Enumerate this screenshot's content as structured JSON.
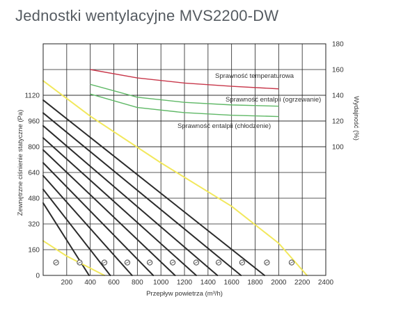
{
  "title": "Jednostki wentylacyjne MVS2200-DW",
  "chart_data": {
    "type": "line",
    "title": "Jednostki wentylacyjne MVS2200-DW",
    "xlabel": "Przepływ powietrza (m³/h)",
    "ylabel_left": "Zewnętrzne ciśnienie statyczne (Pa)",
    "ylabel_right": "Wydajność (%)",
    "xlim": [
      0,
      2400
    ],
    "xticks": [
      200,
      400,
      600,
      800,
      1000,
      1200,
      1400,
      1600,
      1800,
      2000,
      2200,
      2400
    ],
    "xtick_labels": [
      "200",
      "400",
      "600",
      "800",
      "1000",
      "1200",
      "1400",
      "1600",
      "1800",
      "2000",
      "2200",
      "2400"
    ],
    "ylim_left": [
      0,
      1440
    ],
    "yticks_left": [
      0,
      160,
      320,
      480,
      640,
      800,
      960,
      1120
    ],
    "ytick_labels_left": [
      "0",
      "160",
      "320",
      "480",
      "640",
      "800",
      "960",
      "1120"
    ],
    "ylim_right": [
      0,
      180
    ],
    "yticks_right": [
      100,
      120,
      140,
      160,
      180
    ],
    "ytick_labels_right": [
      "100",
      "120",
      "140",
      "160",
      "180"
    ],
    "grid": true,
    "curve_series": [
      {
        "color": "#f2e85c",
        "points": [
          [
            0,
            1210
          ],
          [
            400,
            990
          ],
          [
            1000,
            700
          ],
          [
            1600,
            430
          ],
          [
            2000,
            200
          ],
          [
            2240,
            0
          ]
        ]
      },
      {
        "color": "#2b2b2b",
        "points": [
          [
            0,
            1090
          ],
          [
            1880,
            0
          ]
        ]
      },
      {
        "color": "#2b2b2b",
        "points": [
          [
            0,
            1010
          ],
          [
            1680,
            0
          ]
        ]
      },
      {
        "color": "#2b2b2b",
        "points": [
          [
            0,
            930
          ],
          [
            1480,
            0
          ]
        ]
      },
      {
        "color": "#2b2b2b",
        "points": [
          [
            0,
            855
          ],
          [
            1300,
            0
          ]
        ]
      },
      {
        "color": "#2b2b2b",
        "points": [
          [
            0,
            780
          ],
          [
            1120,
            0
          ]
        ]
      },
      {
        "color": "#2b2b2b",
        "points": [
          [
            0,
            700
          ],
          [
            935,
            0
          ]
        ]
      },
      {
        "color": "#2b2b2b",
        "points": [
          [
            0,
            620
          ],
          [
            755,
            0
          ]
        ]
      },
      {
        "color": "#2b2b2b",
        "points": [
          [
            0,
            535
          ],
          [
            570,
            0
          ]
        ]
      },
      {
        "color": "#2b2b2b",
        "points": [
          [
            0,
            450
          ],
          [
            390,
            0
          ]
        ]
      },
      {
        "color": "#f2e85c",
        "points": [
          [
            0,
            215
          ],
          [
            200,
            120
          ],
          [
            520,
            0
          ]
        ]
      }
    ],
    "efficiency_series": [
      {
        "name": "Sprawność temperaturowa",
        "color": "#c8374a",
        "points": [
          [
            400,
            160
          ],
          [
            800,
            153.5
          ],
          [
            1200,
            149.5
          ],
          [
            1600,
            147
          ],
          [
            2000,
            145
          ]
        ]
      },
      {
        "name": "Sprawność entalpii (ogrzewanie)",
        "color": "#5fb866",
        "points": [
          [
            400,
            148.5
          ],
          [
            800,
            138.5
          ],
          [
            1200,
            134.5
          ],
          [
            1600,
            132.5
          ],
          [
            2000,
            131.5
          ]
        ]
      },
      {
        "name": "Sprawność entalpii (chłodzenie)",
        "color": "#5fb866",
        "points": [
          [
            400,
            141
          ],
          [
            800,
            130.5
          ],
          [
            1200,
            126.5
          ],
          [
            1600,
            124.5
          ],
          [
            2000,
            123.5
          ]
        ]
      }
    ],
    "markers": [
      110,
      310,
      520,
      715,
      905,
      1100,
      1300,
      1490,
      1690,
      1900,
      2110
    ],
    "marker_level": 80
  }
}
